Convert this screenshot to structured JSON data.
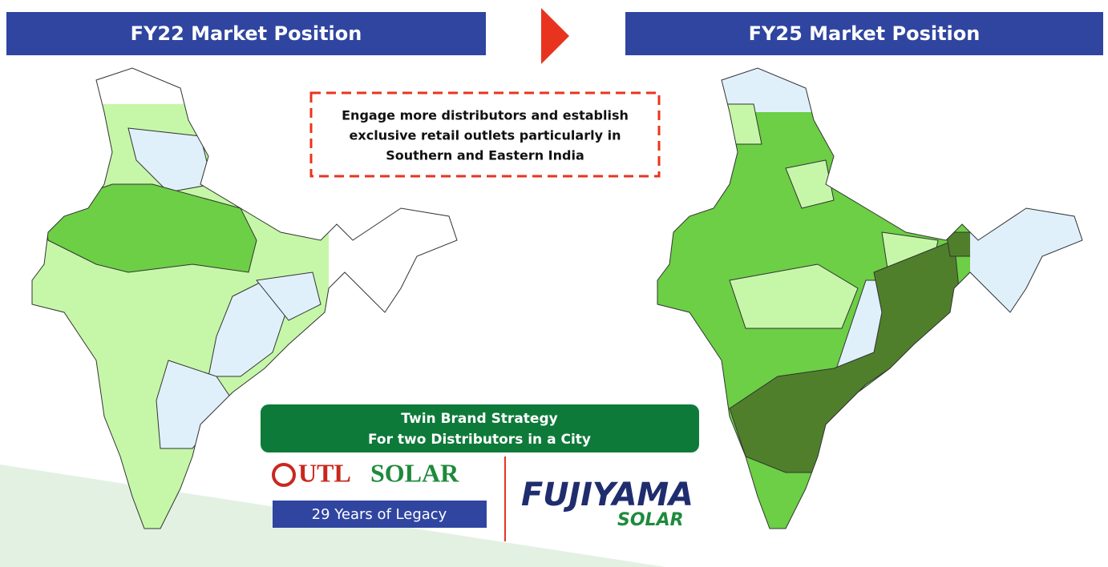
{
  "left_header": "FY22 Market Position",
  "right_header": "FY25 Market Position",
  "callout": {
    "lines": [
      "Engage more distributors and establish",
      "exclusive retail outlets particularly in",
      "Southern and Eastern India"
    ]
  },
  "strategy": {
    "lines": [
      "Twin Brand Strategy",
      "For two Distributors in a City"
    ]
  },
  "utl": {
    "brand_a": "UTL",
    "brand_b": "SOLAR",
    "tagline": "29 Years of Legacy"
  },
  "fujiyama": {
    "name": "FUJIYAMA",
    "sub": "SOLAR"
  }
}
